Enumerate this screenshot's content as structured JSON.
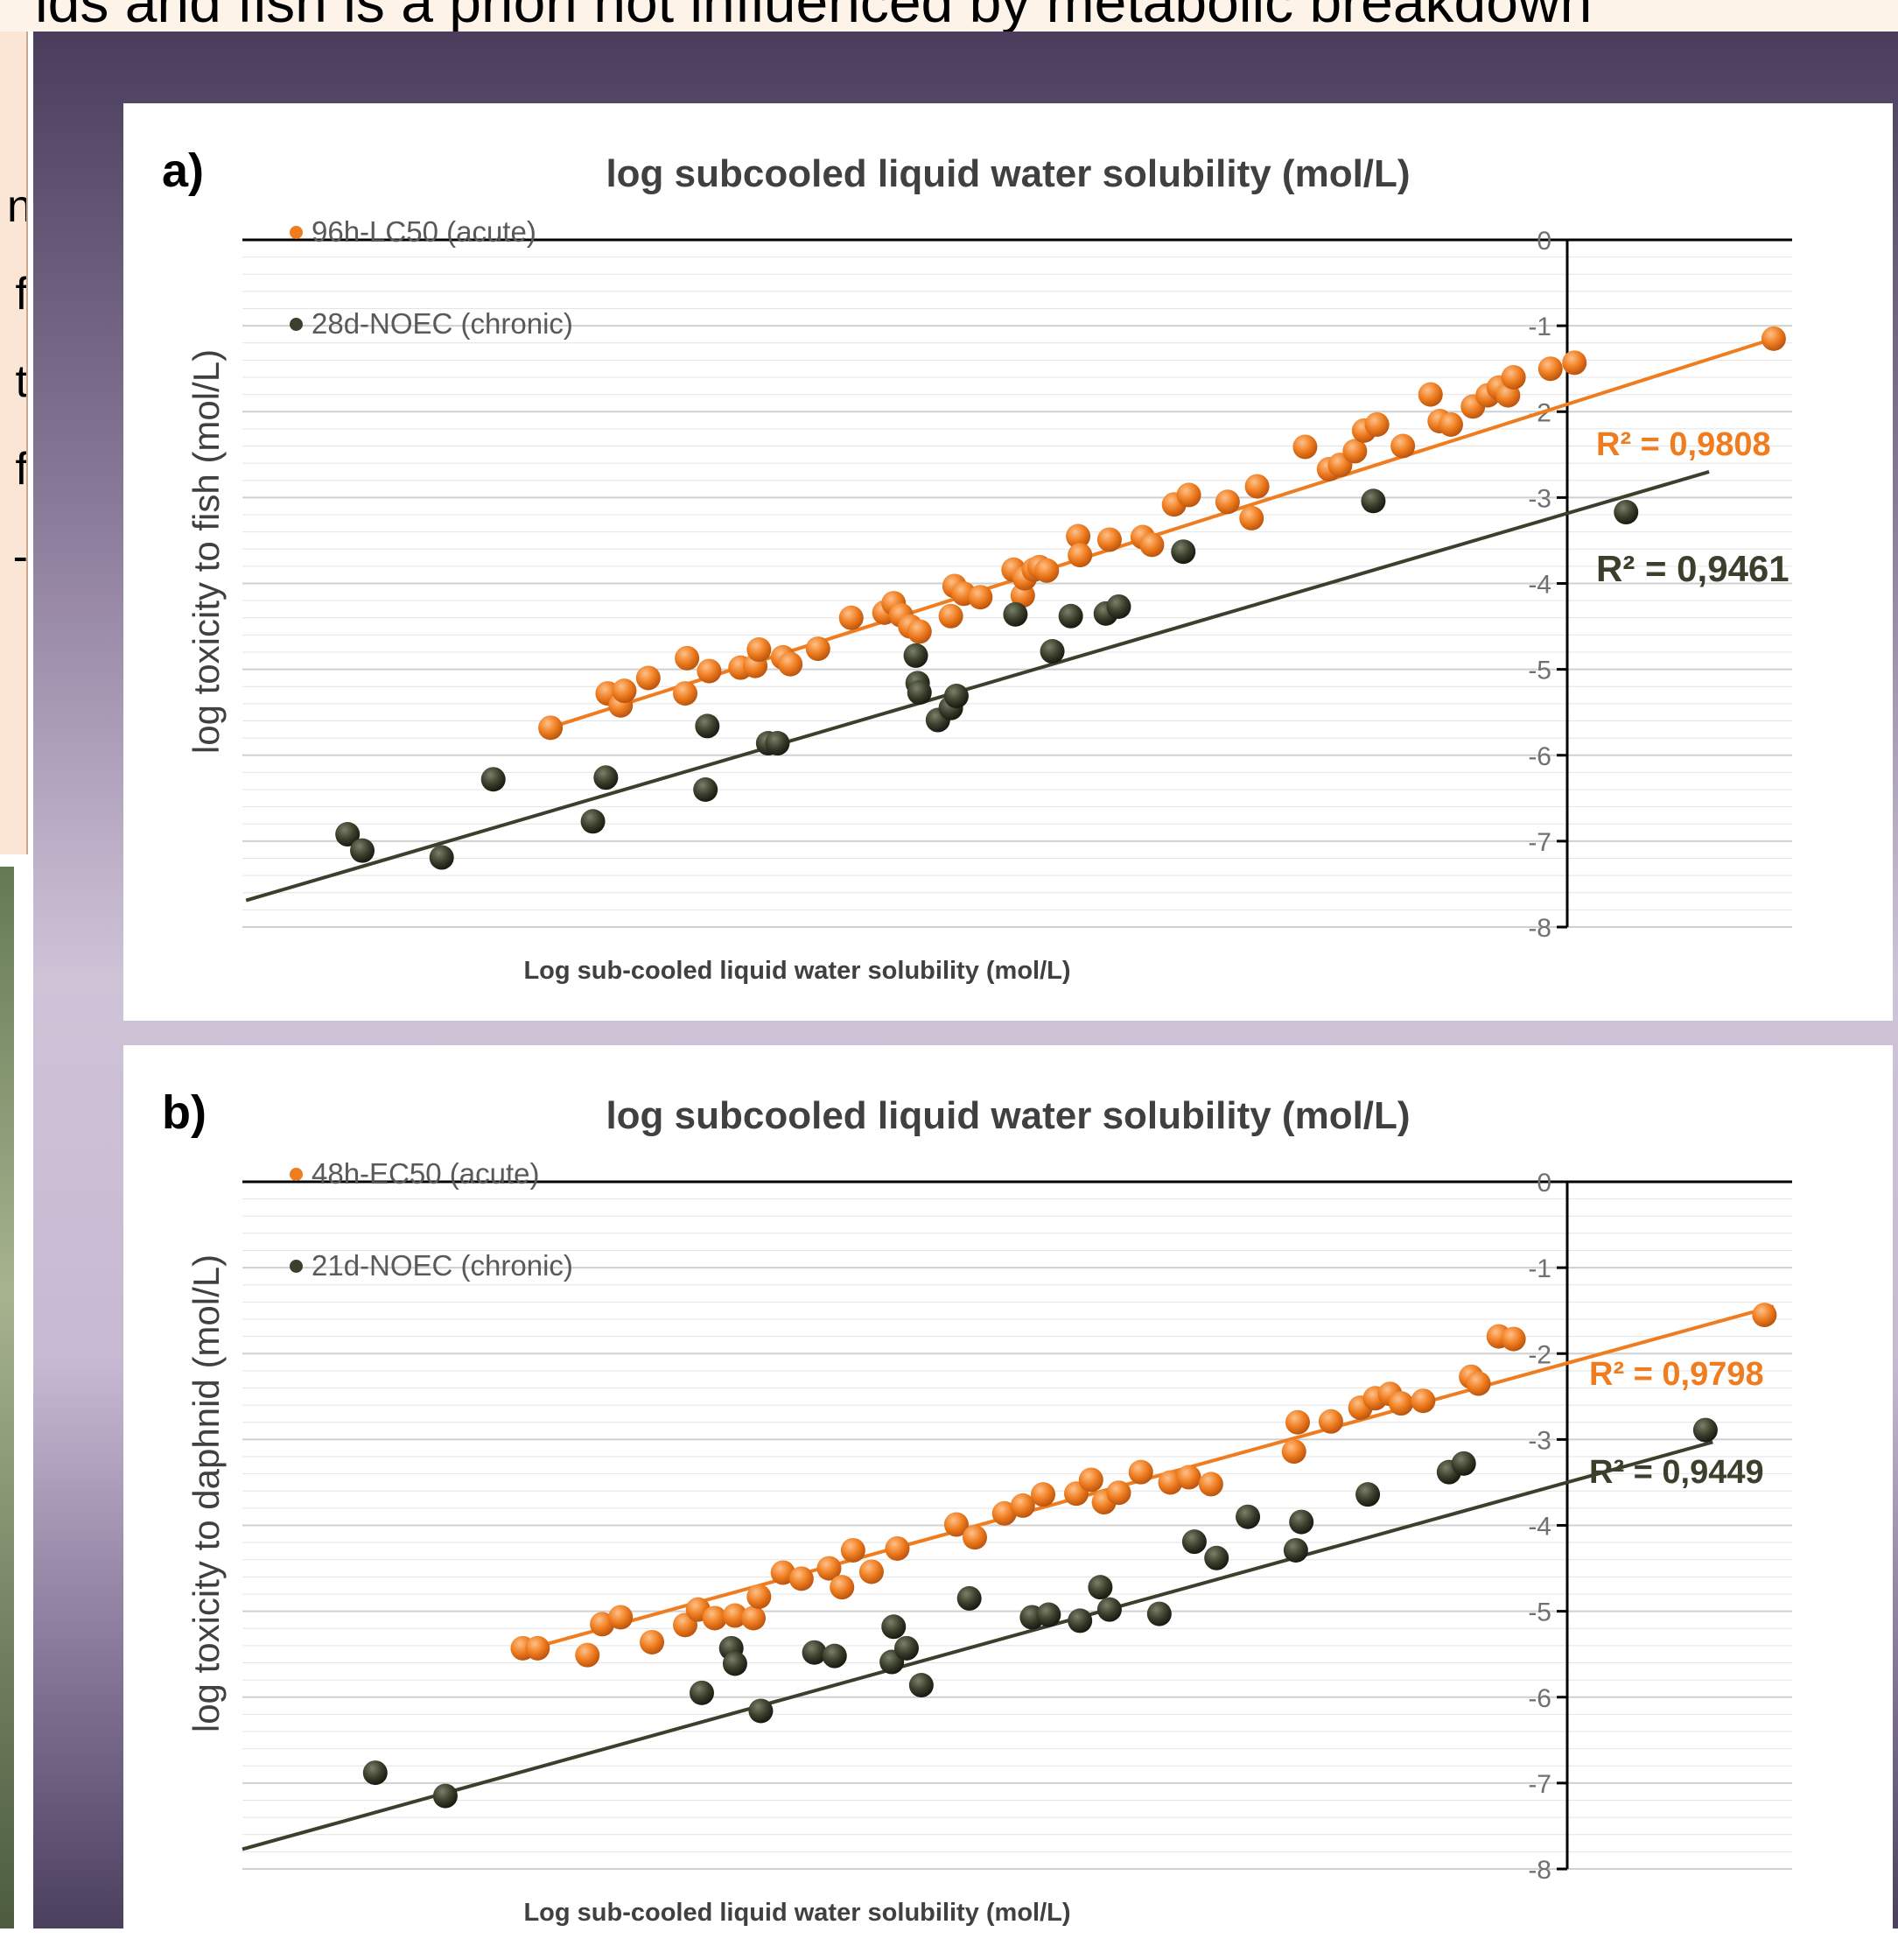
{
  "page_header": "ids and fish is a priori not influenced by metabolic breakdown",
  "left_text_fragments": [
    "n",
    "f",
    "t",
    "f",
    "-"
  ],
  "colors": {
    "acute": "#ef7d1f",
    "chronic": "#3b3f2c",
    "grid": "#e4e4e4",
    "axis": "#000000",
    "text": "#404040"
  },
  "chart_data": [
    {
      "type": "scatter",
      "panel_label": "a)",
      "title": "log subcooled liquid water solubility (mol/L)",
      "xlabel": "Log sub-cooled liquid water solubility (mol/L)",
      "ylabel": "log  toxicity to fish (mol/L)",
      "xlim": [
        -8.05,
        0.35
      ],
      "ylim": [
        -8,
        0
      ],
      "y_ticks": [
        "0",
        "-1",
        "-2",
        "-3",
        "-4",
        "-5",
        "-6",
        "-7",
        "-8"
      ],
      "grid": true,
      "legend_position": "top-left",
      "series": [
        {
          "name": "96h-LC50 (acute)",
          "role": "acute",
          "r2": "R² = 0,9808",
          "trend": [
            [
              -6.4,
              -5.69
            ],
            [
              0.25,
              -1.15
            ]
          ],
          "points": [
            [
              -6.38,
              -5.68
            ],
            [
              -6.07,
              -5.28
            ],
            [
              -6.0,
              -5.42
            ],
            [
              -5.98,
              -5.25
            ],
            [
              -5.85,
              -5.1
            ],
            [
              -5.65,
              -5.28
            ],
            [
              -5.64,
              -4.87
            ],
            [
              -5.52,
              -5.02
            ],
            [
              -5.35,
              -4.98
            ],
            [
              -5.27,
              -4.96
            ],
            [
              -5.25,
              -4.77
            ],
            [
              -5.12,
              -4.86
            ],
            [
              -5.08,
              -4.94
            ],
            [
              -4.93,
              -4.76
            ],
            [
              -4.75,
              -4.4
            ],
            [
              -4.57,
              -4.34
            ],
            [
              -4.52,
              -4.23
            ],
            [
              -4.48,
              -4.37
            ],
            [
              -4.43,
              -4.5
            ],
            [
              -4.38,
              -4.56
            ],
            [
              -4.21,
              -4.38
            ],
            [
              -4.19,
              -4.03
            ],
            [
              -4.14,
              -4.12
            ],
            [
              -4.05,
              -4.16
            ],
            [
              -3.87,
              -3.84
            ],
            [
              -3.82,
              -4.14
            ],
            [
              -3.81,
              -3.94
            ],
            [
              -3.76,
              -3.84
            ],
            [
              -3.73,
              -3.81
            ],
            [
              -3.69,
              -3.85
            ],
            [
              -3.52,
              -3.45
            ],
            [
              -3.51,
              -3.67
            ],
            [
              -3.35,
              -3.49
            ],
            [
              -3.17,
              -3.46
            ],
            [
              -3.12,
              -3.55
            ],
            [
              -3.0,
              -3.08
            ],
            [
              -2.92,
              -2.97
            ],
            [
              -2.71,
              -3.05
            ],
            [
              -2.58,
              -3.24
            ],
            [
              -2.55,
              -2.87
            ],
            [
              -2.29,
              -2.41
            ],
            [
              -2.16,
              -2.67
            ],
            [
              -2.1,
              -2.62
            ],
            [
              -2.02,
              -2.46
            ],
            [
              -1.97,
              -2.22
            ],
            [
              -1.9,
              -2.15
            ],
            [
              -1.76,
              -2.4
            ],
            [
              -1.61,
              -1.8
            ],
            [
              -1.56,
              -2.11
            ],
            [
              -1.5,
              -2.15
            ],
            [
              -1.38,
              -1.94
            ],
            [
              -1.3,
              -1.81
            ],
            [
              -1.24,
              -1.72
            ],
            [
              -1.19,
              -1.81
            ],
            [
              -1.16,
              -1.6
            ],
            [
              -0.96,
              -1.5
            ],
            [
              -0.83,
              -1.43
            ],
            [
              0.25,
              -1.15
            ]
          ]
        },
        {
          "name": "28d-NOEC (chronic)",
          "role": "chronic",
          "r2": "R² = 0,9461",
          "trend": [
            [
              -8.03,
              -7.69
            ],
            [
              -0.1,
              -2.7
            ]
          ],
          "points": [
            [
              -7.48,
              -6.92
            ],
            [
              -7.4,
              -7.11
            ],
            [
              -6.97,
              -7.19
            ],
            [
              -6.69,
              -6.28
            ],
            [
              -6.15,
              -6.77
            ],
            [
              -6.08,
              -6.26
            ],
            [
              -5.54,
              -6.4
            ],
            [
              -5.53,
              -5.66
            ],
            [
              -5.2,
              -5.86
            ],
            [
              -5.15,
              -5.86
            ],
            [
              -4.39,
              -5.16
            ],
            [
              -4.4,
              -4.84
            ],
            [
              -4.38,
              -5.27
            ],
            [
              -4.28,
              -5.59
            ],
            [
              -4.21,
              -5.45
            ],
            [
              -4.18,
              -5.31
            ],
            [
              -3.86,
              -4.36
            ],
            [
              -3.66,
              -4.79
            ],
            [
              -3.56,
              -4.38
            ],
            [
              -3.37,
              -4.35
            ],
            [
              -3.3,
              -4.27
            ],
            [
              -2.95,
              -3.63
            ],
            [
              -1.92,
              -3.04
            ],
            [
              -0.55,
              -3.17
            ]
          ]
        }
      ]
    },
    {
      "type": "scatter",
      "panel_label": "b)",
      "title": "log subcooled liquid water solubility (mol/L)",
      "xlabel": "Log sub-cooled liquid water solubility (mol/L)",
      "ylabel": "log  toxicity to daphnid (mol/L)",
      "xlim": [
        -8.05,
        0.35
      ],
      "ylim": [
        -8,
        0
      ],
      "y_ticks": [
        "0",
        "-1",
        "-2",
        "-3",
        "-4",
        "-5",
        "-6",
        "-7",
        "-8"
      ],
      "grid": true,
      "legend_position": "top-left",
      "series": [
        {
          "name": "48h-EC50 (acute)",
          "role": "acute",
          "r2": "R² = 0,9798",
          "trend": [
            [
              -6.45,
              -5.41
            ],
            [
              0.25,
              -1.45
            ]
          ],
          "points": [
            [
              -6.53,
              -5.43
            ],
            [
              -6.45,
              -5.43
            ],
            [
              -6.18,
              -5.51
            ],
            [
              -6.1,
              -5.15
            ],
            [
              -6.0,
              -5.07
            ],
            [
              -5.83,
              -5.36
            ],
            [
              -5.65,
              -5.16
            ],
            [
              -5.58,
              -4.98
            ],
            [
              -5.49,
              -5.08
            ],
            [
              -5.38,
              -5.05
            ],
            [
              -5.28,
              -5.08
            ],
            [
              -5.25,
              -4.83
            ],
            [
              -5.12,
              -4.55
            ],
            [
              -5.02,
              -4.62
            ],
            [
              -4.87,
              -4.5
            ],
            [
              -4.8,
              -4.72
            ],
            [
              -4.74,
              -4.29
            ],
            [
              -4.64,
              -4.54
            ],
            [
              -4.5,
              -4.27
            ],
            [
              -4.18,
              -3.99
            ],
            [
              -4.08,
              -4.14
            ],
            [
              -3.92,
              -3.86
            ],
            [
              -3.82,
              -3.77
            ],
            [
              -3.71,
              -3.64
            ],
            [
              -3.53,
              -3.63
            ],
            [
              -3.45,
              -3.47
            ],
            [
              -3.38,
              -3.73
            ],
            [
              -3.3,
              -3.62
            ],
            [
              -3.18,
              -3.38
            ],
            [
              -3.02,
              -3.5
            ],
            [
              -2.92,
              -3.44
            ],
            [
              -2.8,
              -3.52
            ],
            [
              -2.35,
              -3.14
            ],
            [
              -2.33,
              -2.8
            ],
            [
              -2.15,
              -2.79
            ],
            [
              -1.99,
              -2.63
            ],
            [
              -1.91,
              -2.52
            ],
            [
              -1.83,
              -2.47
            ],
            [
              -1.77,
              -2.58
            ],
            [
              -1.65,
              -2.55
            ],
            [
              -1.39,
              -2.27
            ],
            [
              -1.35,
              -2.35
            ],
            [
              -1.24,
              -1.8
            ],
            [
              -1.16,
              -1.83
            ],
            [
              0.2,
              -1.55
            ]
          ]
        },
        {
          "name": "21d-NOEC (chronic)",
          "role": "chronic",
          "r2": "R² = 0,9449",
          "trend": [
            [
              -8.05,
              -7.77
            ],
            [
              -0.08,
              -3.03
            ]
          ],
          "points": [
            [
              -7.33,
              -6.88
            ],
            [
              -6.95,
              -7.15
            ],
            [
              -5.56,
              -5.95
            ],
            [
              -5.4,
              -5.43
            ],
            [
              -5.38,
              -5.61
            ],
            [
              -5.24,
              -6.16
            ],
            [
              -4.95,
              -5.48
            ],
            [
              -4.84,
              -5.52
            ],
            [
              -4.53,
              -5.59
            ],
            [
              -4.52,
              -5.18
            ],
            [
              -4.45,
              -5.43
            ],
            [
              -4.37,
              -5.86
            ],
            [
              -4.11,
              -4.85
            ],
            [
              -3.77,
              -5.07
            ],
            [
              -3.68,
              -5.04
            ],
            [
              -3.51,
              -5.11
            ],
            [
              -3.4,
              -4.72
            ],
            [
              -3.35,
              -4.98
            ],
            [
              -3.08,
              -5.03
            ],
            [
              -2.89,
              -4.19
            ],
            [
              -2.77,
              -4.38
            ],
            [
              -2.6,
              -3.9
            ],
            [
              -2.34,
              -4.29
            ],
            [
              -2.31,
              -3.96
            ],
            [
              -1.95,
              -3.64
            ],
            [
              -1.51,
              -3.38
            ],
            [
              -1.43,
              -3.28
            ],
            [
              -0.12,
              -2.89
            ]
          ]
        }
      ]
    }
  ]
}
